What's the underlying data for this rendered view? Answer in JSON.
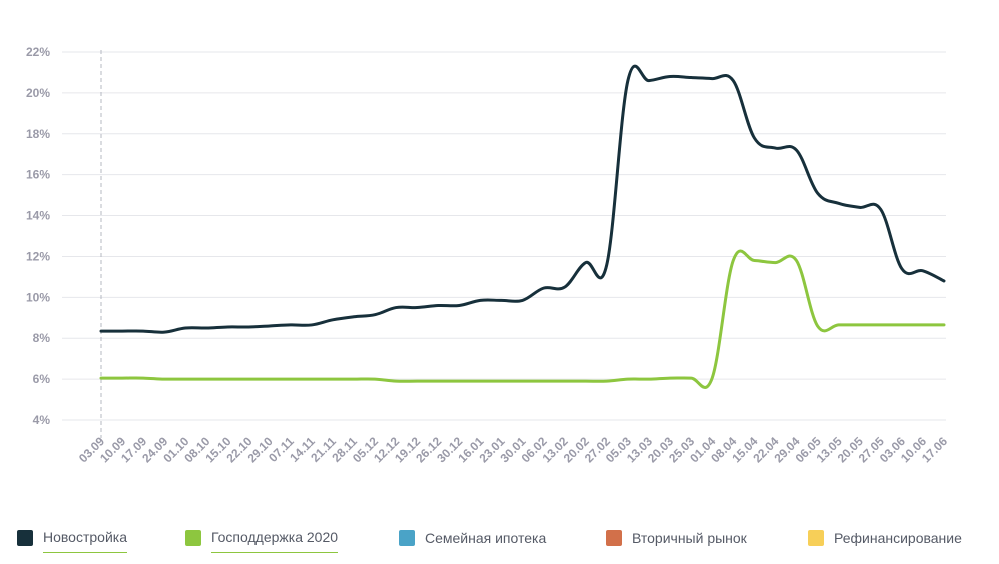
{
  "chart_data": {
    "type": "line",
    "title": "",
    "xlabel": "",
    "ylabel": "",
    "ylim": [
      4,
      22
    ],
    "yticks": [
      "22%",
      "20%",
      "18%",
      "16%",
      "14%",
      "12%",
      "10%",
      "8%",
      "6%",
      "4%"
    ],
    "grid": true,
    "legend_position": "bottom",
    "categories": [
      "03.09",
      "10.09",
      "17.09",
      "24.09",
      "01.10",
      "08.10",
      "15.10",
      "22.10",
      "29.10",
      "07.11",
      "14.11",
      "21.11",
      "28.11",
      "05.12",
      "12.12",
      "19.12",
      "26.12",
      "30.12",
      "16.01",
      "23.01",
      "30.01",
      "06.02",
      "13.02",
      "20.02",
      "27.02",
      "05.03",
      "13.03",
      "20.03",
      "25.03",
      "01.04",
      "08.04",
      "15.04",
      "22.04",
      "29.04",
      "06.05",
      "13.05",
      "20.05",
      "27.05",
      "03.06",
      "10.06",
      "17.06"
    ],
    "series": [
      {
        "name": "Новостройка",
        "color": "#17303b",
        "values": [
          8.35,
          8.35,
          8.35,
          8.3,
          8.5,
          8.5,
          8.55,
          8.55,
          8.6,
          8.65,
          8.65,
          8.9,
          9.05,
          9.15,
          9.5,
          9.5,
          9.6,
          9.6,
          9.85,
          9.85,
          9.85,
          10.45,
          10.5,
          11.7,
          11.6,
          20.6,
          20.6,
          20.8,
          20.75,
          20.7,
          20.6,
          17.8,
          17.3,
          17.2,
          15.1,
          14.6,
          14.4,
          14.3,
          11.4,
          11.3,
          10.8
        ]
      },
      {
        "name": "Господдержка 2020",
        "color": "#8dc63f",
        "values": [
          6.05,
          6.05,
          6.05,
          6.0,
          6.0,
          6.0,
          6.0,
          6.0,
          6.0,
          6.0,
          6.0,
          6.0,
          6.0,
          6.0,
          5.9,
          5.9,
          5.9,
          5.9,
          5.9,
          5.9,
          5.9,
          5.9,
          5.9,
          5.9,
          5.9,
          6.0,
          6.0,
          6.05,
          6.05,
          6.05,
          11.8,
          11.8,
          11.7,
          11.8,
          8.6,
          8.65,
          8.65,
          8.65,
          8.65,
          8.65,
          8.65
        ]
      }
    ]
  },
  "legend": [
    {
      "label": "Новостройка",
      "color": "#17303b"
    },
    {
      "label": "Господдержка 2020",
      "color": "#8dc63f"
    },
    {
      "label": "Семейная ипотека",
      "color": "#4aa3c7"
    },
    {
      "label": "Вторичный рынок",
      "color": "#d2704a"
    },
    {
      "label": "Рефинансирование",
      "color": "#f7cf58"
    }
  ]
}
